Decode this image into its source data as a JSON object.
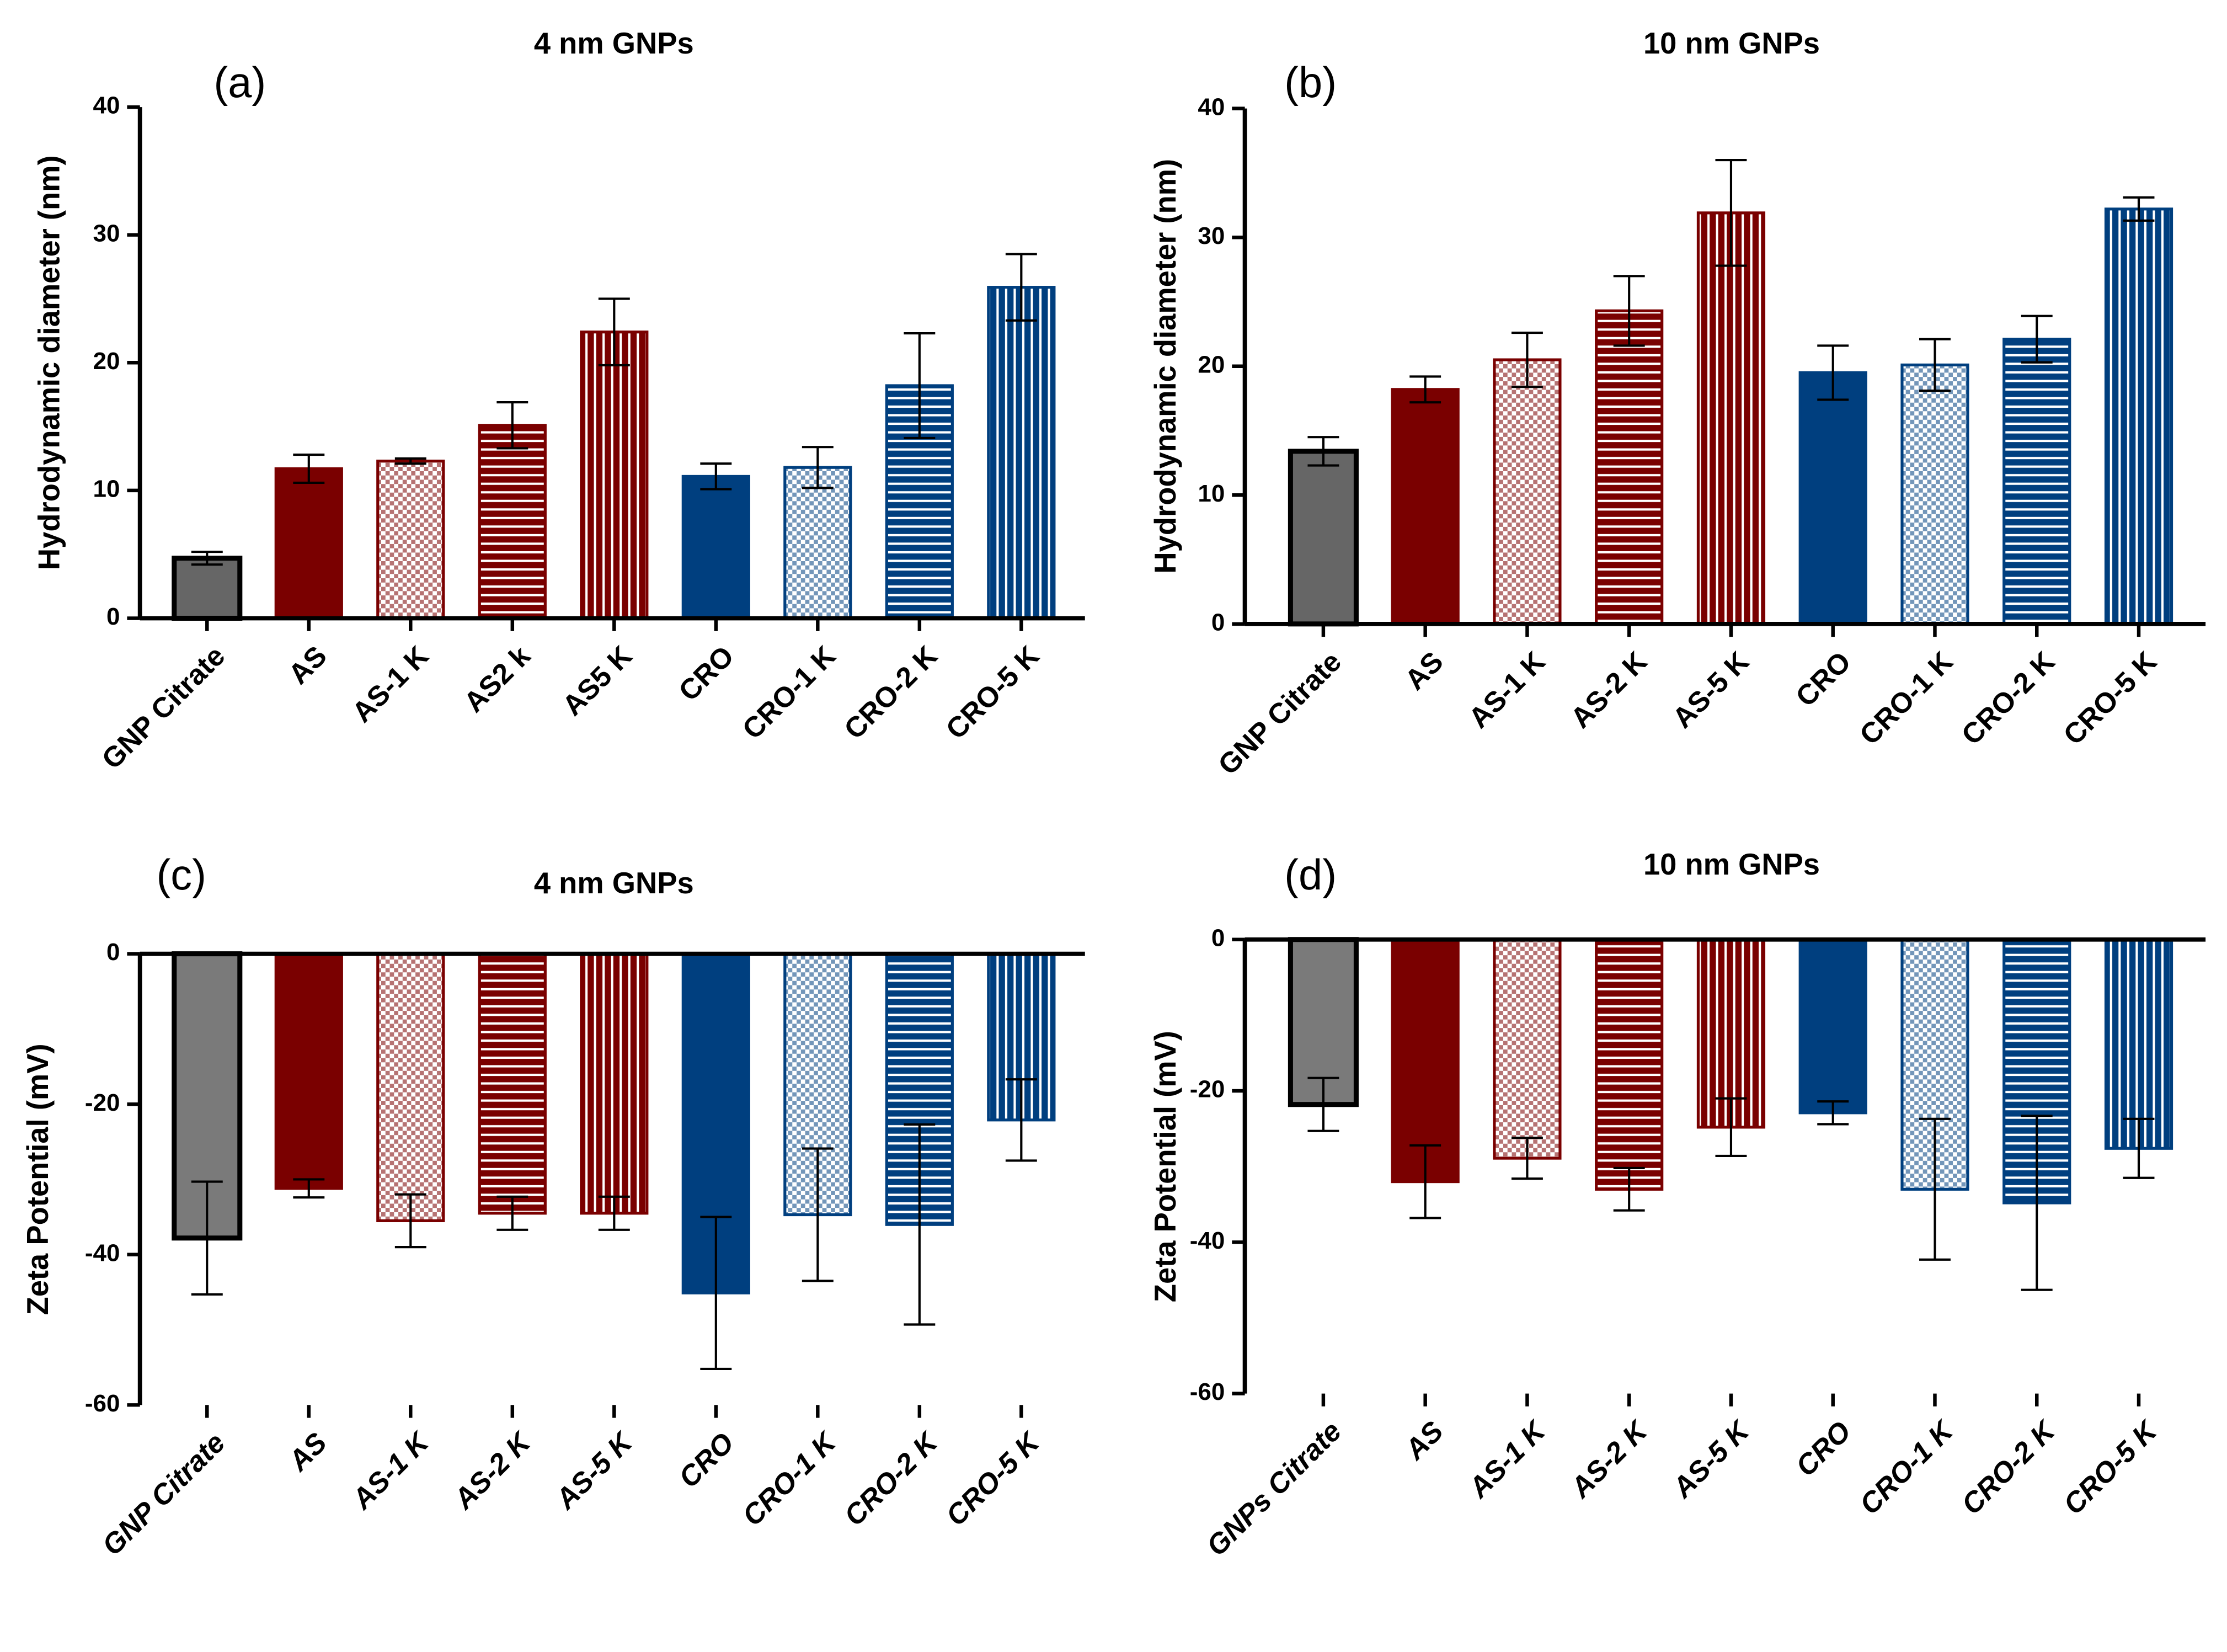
{
  "chart_data": [
    {
      "type": "bar",
      "panel": "(a)",
      "title": "4 nm GNPs",
      "y_label": "Hydrodynamic diameter (nm)",
      "categories": [
        "GNP Citrate",
        "AS",
        "AS-1 K",
        "AS2 k",
        "AS5 K",
        "CRO",
        "CRO-1 K",
        "CRO-2 K",
        "CRO-5 K"
      ],
      "values": [
        4.7,
        11.7,
        12.3,
        15.1,
        22.4,
        11.1,
        11.8,
        18.2,
        25.9
      ],
      "errors": [
        0.5,
        1.1,
        0.2,
        1.8,
        2.6,
        1.0,
        1.6,
        4.1,
        2.6
      ],
      "colors": [
        "#666666",
        "#7a0000",
        "#7a0000",
        "#7a0000",
        "#7a0000",
        "#003f7f",
        "#003f7f",
        "#003f7f",
        "#003f7f"
      ],
      "edge_colors": [
        "#000000",
        "#7a0000",
        "#7a0000",
        "#7a0000",
        "#7a0000",
        "#003f7f",
        "#003f7f",
        "#003f7f",
        "#003f7f"
      ],
      "patterns": [
        "solid",
        "solid",
        "check",
        "hlines",
        "vlines",
        "solid",
        "check",
        "hlines",
        "vlines"
      ],
      "ylim": [
        0,
        40
      ],
      "yticks": [
        0,
        10,
        20,
        30,
        40
      ]
    },
    {
      "type": "bar",
      "panel": "(b)",
      "title": "10 nm GNPs",
      "y_label": "Hydrodynamic diameter (nm)",
      "categories": [
        "GNP Citrate",
        "AS",
        "AS-1 K",
        "AS-2 K",
        "AS-5 K",
        "CRO",
        "CRO-1 K",
        "CRO-2 K",
        "CRO-5 K"
      ],
      "values": [
        13.4,
        18.2,
        20.5,
        24.3,
        31.9,
        19.5,
        20.1,
        22.1,
        32.2
      ],
      "errors": [
        1.1,
        1.0,
        2.1,
        2.7,
        4.1,
        2.1,
        2.0,
        1.8,
        0.9
      ],
      "colors": [
        "#666666",
        "#7a0000",
        "#7a0000",
        "#7a0000",
        "#7a0000",
        "#003f7f",
        "#003f7f",
        "#003f7f",
        "#003f7f"
      ],
      "edge_colors": [
        "#000000",
        "#7a0000",
        "#7a0000",
        "#7a0000",
        "#7a0000",
        "#003f7f",
        "#003f7f",
        "#003f7f",
        "#003f7f"
      ],
      "patterns": [
        "solid",
        "solid",
        "check",
        "hlines",
        "vlines",
        "solid",
        "check",
        "hlines",
        "vlines"
      ],
      "ylim": [
        0,
        40
      ],
      "yticks": [
        0,
        10,
        20,
        30,
        40
      ]
    },
    {
      "type": "bar",
      "panel": "(c)",
      "title": "4 nm GNPs",
      "y_label": "Zeta Potential (mV)",
      "categories": [
        "GNP Citrate",
        "AS",
        "AS-1 K",
        "AS-2 K",
        "AS-5 K",
        "CRO",
        "CRO-1 K",
        "CRO-2 K",
        "CRO-5 K"
      ],
      "values": [
        -37.8,
        -31.2,
        -35.5,
        -34.5,
        -34.5,
        -45.1,
        -34.7,
        -36,
        -22.1
      ],
      "errors": [
        7.5,
        1.2,
        3.5,
        2.2,
        2.2,
        10.1,
        8.8,
        13.3,
        5.4
      ],
      "colors": [
        "#7a7a7a",
        "#7a0000",
        "#7a0000",
        "#7a0000",
        "#7a0000",
        "#003f7f",
        "#003f7f",
        "#003f7f",
        "#003f7f"
      ],
      "edge_colors": [
        "#000000",
        "#7a0000",
        "#7a0000",
        "#7a0000",
        "#7a0000",
        "#003f7f",
        "#003f7f",
        "#003f7f",
        "#003f7f"
      ],
      "patterns": [
        "solid",
        "solid",
        "check",
        "hlines",
        "vlines",
        "solid",
        "check",
        "hlines",
        "vlines"
      ],
      "ylim": [
        -60,
        0
      ],
      "yticks": [
        -60,
        -40,
        -20,
        0
      ]
    },
    {
      "type": "bar",
      "panel": "(d)",
      "title": "10 nm GNPs",
      "y_label": "Zeta Potential (mV)",
      "categories": [
        "GNPs  Citrate",
        "AS",
        "AS-1 K",
        "AS-2 K",
        "AS-5 K",
        "CRO",
        "CRO-1 K",
        "CRO-2 K",
        "CRO-5 K"
      ],
      "values": [
        -21.8,
        -32,
        -28.9,
        -33,
        -24.8,
        -22.9,
        -33,
        -34.8,
        -27.6
      ],
      "errors": [
        3.5,
        4.8,
        2.7,
        2.8,
        3.8,
        1.5,
        9.3,
        11.5,
        3.9
      ],
      "colors": [
        "#7a7a7a",
        "#7a0000",
        "#7a0000",
        "#7a0000",
        "#7a0000",
        "#003f7f",
        "#003f7f",
        "#003f7f",
        "#003f7f"
      ],
      "edge_colors": [
        "#000000",
        "#7a0000",
        "#7a0000",
        "#7a0000",
        "#7a0000",
        "#003f7f",
        "#003f7f",
        "#003f7f",
        "#003f7f"
      ],
      "patterns": [
        "solid",
        "solid",
        "check",
        "hlines",
        "vlines",
        "solid",
        "check",
        "hlines",
        "vlines"
      ],
      "ylim": [
        -60,
        0
      ],
      "yticks": [
        -60,
        -40,
        -20,
        0
      ]
    }
  ]
}
